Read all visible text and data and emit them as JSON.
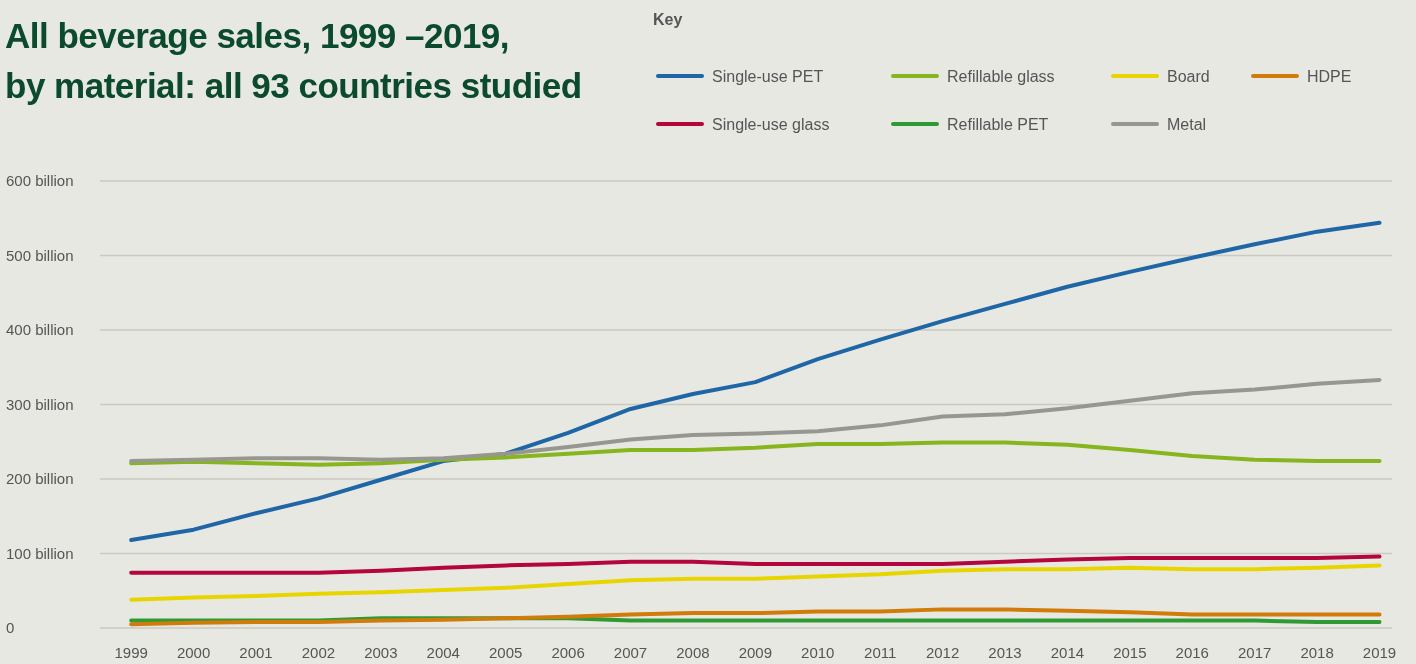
{
  "chart_data": {
    "type": "line",
    "title": "All beverage sales, 1999 –2019,\nby material: all 93 countries studied",
    "legend_title": "Key",
    "legend": "top right",
    "grid": "y",
    "line_style": "solid",
    "marker": "none",
    "x": [
      1999,
      2000,
      2001,
      2002,
      2003,
      2004,
      2005,
      2006,
      2007,
      2008,
      2009,
      2010,
      2011,
      2012,
      2013,
      2014,
      2015,
      2016,
      2017,
      2018,
      2019
    ],
    "xlim": [
      1998.5,
      2019.2
    ],
    "xticks": [
      1999,
      2000,
      2001,
      2002,
      2003,
      2004,
      2005,
      2006,
      2007,
      2008,
      2009,
      2010,
      2011,
      2012,
      2013,
      2014,
      2015,
      2016,
      2017,
      2018,
      2019
    ],
    "ylim": [
      0,
      600
    ],
    "yticks": [
      0,
      {
        "value": 100,
        "label": "100 billion"
      },
      {
        "value": 200,
        "label": "200 billion"
      },
      {
        "value": 300,
        "label": "300 billion"
      },
      {
        "value": 400,
        "label": "400 billion"
      },
      {
        "value": 500,
        "label": "500 billion"
      },
      {
        "value": 600,
        "label": "600 billion"
      }
    ],
    "series": [
      {
        "name": "Single-use PET",
        "color": "#1f66a6",
        "values": [
          118,
          132,
          154,
          174,
          199,
          224,
          234,
          262,
          294,
          314,
          330,
          361,
          387,
          412,
          435,
          458,
          478,
          497,
          515,
          532,
          544
        ]
      },
      {
        "name": "Single-use glass",
        "color": "#b3063f",
        "values": [
          74,
          74,
          74,
          74,
          77,
          81,
          84,
          86,
          89,
          89,
          86,
          86,
          86,
          86,
          89,
          92,
          94,
          94,
          94,
          94,
          96
        ]
      },
      {
        "name": "Refillable glass",
        "color": "#86b51d",
        "values": [
          221,
          223,
          221,
          219,
          221,
          226,
          229,
          234,
          239,
          239,
          242,
          247,
          247,
          249,
          249,
          246,
          239,
          231,
          226,
          224,
          224
        ]
      },
      {
        "name": "Refillable PET",
        "color": "#2e9a34",
        "values": [
          10,
          10,
          10,
          10,
          13,
          13,
          13,
          13,
          10,
          10,
          10,
          10,
          10,
          10,
          10,
          10,
          10,
          10,
          10,
          8,
          8
        ]
      },
      {
        "name": "Board",
        "color": "#e8d500",
        "values": [
          38,
          41,
          43,
          46,
          48,
          51,
          54,
          59,
          64,
          66,
          66,
          69,
          72,
          77,
          79,
          79,
          81,
          79,
          79,
          81,
          84
        ]
      },
      {
        "name": "Metal",
        "color": "#979791",
        "values": [
          224,
          226,
          228,
          228,
          226,
          228,
          234,
          243,
          253,
          259,
          261,
          264,
          272,
          284,
          287,
          295,
          305,
          315,
          320,
          328,
          333
        ]
      },
      {
        "name": "HDPE",
        "color": "#d07b0a",
        "values": [
          5,
          7,
          8,
          8,
          10,
          11,
          13,
          15,
          18,
          20,
          20,
          22,
          22,
          25,
          25,
          23,
          21,
          18,
          18,
          18,
          18
        ]
      }
    ]
  }
}
